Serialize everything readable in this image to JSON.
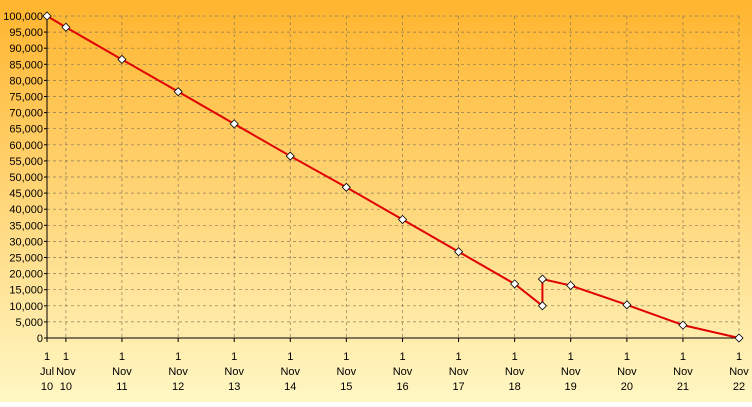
{
  "chart_data": {
    "type": "line",
    "title": "",
    "xlabel": "",
    "ylabel": "",
    "ylim": [
      0,
      100000
    ],
    "grid": true,
    "legend": "none",
    "colors": {
      "background_top": "#ffb52e",
      "background_bottom": "#fff7c4",
      "line": "#e00000",
      "marker_fill": "#ffffff",
      "marker_stroke": "#000000",
      "grid": "#8a7a5a",
      "axis": "#000000"
    },
    "y_ticks": [
      {
        "value": 0,
        "label": "0"
      },
      {
        "value": 5000,
        "label": "5,000"
      },
      {
        "value": 10000,
        "label": "10,000"
      },
      {
        "value": 15000,
        "label": "15,000"
      },
      {
        "value": 20000,
        "label": "20,000"
      },
      {
        "value": 25000,
        "label": "25,000"
      },
      {
        "value": 30000,
        "label": "30,000"
      },
      {
        "value": 35000,
        "label": "35,000"
      },
      {
        "value": 40000,
        "label": "40,000"
      },
      {
        "value": 45000,
        "label": "45,000"
      },
      {
        "value": 50000,
        "label": "50,000"
      },
      {
        "value": 55000,
        "label": "55,000"
      },
      {
        "value": 60000,
        "label": "60,000"
      },
      {
        "value": 65000,
        "label": "65,000"
      },
      {
        "value": 70000,
        "label": "70,000"
      },
      {
        "value": 75000,
        "label": "75,000"
      },
      {
        "value": 80000,
        "label": "80,000"
      },
      {
        "value": 85000,
        "label": "85,000"
      },
      {
        "value": 90000,
        "label": "90,000"
      },
      {
        "value": 95000,
        "label": "95,000"
      },
      {
        "value": 100000,
        "label": "100,000"
      }
    ],
    "x_ticks": [
      {
        "date": "2010-07-01",
        "day": "1",
        "month": "Jul",
        "year": "10",
        "grid": false
      },
      {
        "date": "2010-11-01",
        "day": "1",
        "month": "Nov",
        "year": "10",
        "grid": true
      },
      {
        "date": "2011-11-01",
        "day": "1",
        "month": "Nov",
        "year": "11",
        "grid": true
      },
      {
        "date": "2012-11-01",
        "day": "1",
        "month": "Nov",
        "year": "12",
        "grid": true
      },
      {
        "date": "2013-11-01",
        "day": "1",
        "month": "Nov",
        "year": "13",
        "grid": true
      },
      {
        "date": "2014-11-01",
        "day": "1",
        "month": "Nov",
        "year": "14",
        "grid": true
      },
      {
        "date": "2015-11-01",
        "day": "1",
        "month": "Nov",
        "year": "15",
        "grid": true
      },
      {
        "date": "2016-11-01",
        "day": "1",
        "month": "Nov",
        "year": "16",
        "grid": true
      },
      {
        "date": "2017-11-01",
        "day": "1",
        "month": "Nov",
        "year": "17",
        "grid": true
      },
      {
        "date": "2018-11-01",
        "day": "1",
        "month": "Nov",
        "year": "18",
        "grid": true
      },
      {
        "date": "2019-11-01",
        "day": "1",
        "month": "Nov",
        "year": "19",
        "grid": true
      },
      {
        "date": "2020-11-01",
        "day": "1",
        "month": "Nov",
        "year": "20",
        "grid": true
      },
      {
        "date": "2021-11-01",
        "day": "1",
        "month": "Nov",
        "year": "21",
        "grid": true
      },
      {
        "date": "2022-11-01",
        "day": "1",
        "month": "Nov",
        "year": "22",
        "grid": true
      }
    ],
    "x_range": [
      "2010-07-01",
      "2022-11-01"
    ],
    "series": [
      {
        "points": [
          {
            "x": "2010-07-01",
            "y": 100000
          },
          {
            "x": "2010-11-01",
            "y": 96500
          },
          {
            "x": "2011-11-01",
            "y": 86500
          },
          {
            "x": "2012-11-01",
            "y": 76500
          },
          {
            "x": "2013-11-01",
            "y": 66500
          },
          {
            "x": "2014-11-01",
            "y": 56500
          },
          {
            "x": "2015-11-01",
            "y": 46800
          },
          {
            "x": "2016-11-01",
            "y": 36800
          },
          {
            "x": "2017-11-01",
            "y": 26800
          },
          {
            "x": "2018-11-01",
            "y": 16800
          },
          {
            "x": "2019-05-01",
            "y": 10000
          },
          {
            "x": "2019-05-01",
            "y": 18300
          },
          {
            "x": "2019-11-01",
            "y": 16300
          },
          {
            "x": "2020-11-01",
            "y": 10300
          },
          {
            "x": "2021-11-01",
            "y": 4000
          },
          {
            "x": "2022-11-01",
            "y": 0
          }
        ]
      }
    ]
  }
}
